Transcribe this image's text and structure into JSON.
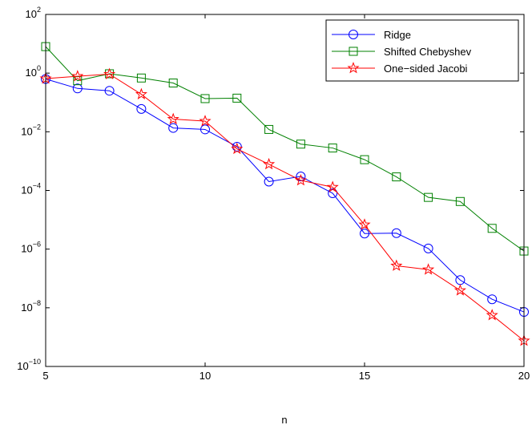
{
  "chart_data": {
    "type": "line",
    "xlabel": "n",
    "ylabel": "",
    "title": "",
    "x_scale": "linear",
    "y_scale": "log",
    "xlim": [
      5,
      20
    ],
    "ylim": [
      1e-10,
      100
    ],
    "x_ticks": [
      5,
      10,
      15,
      20
    ],
    "x_tick_labels": [
      "5",
      "10",
      "15",
      "20"
    ],
    "y_ticks": [
      {
        "value": 1e-10,
        "base": "10",
        "exp": "−10"
      },
      {
        "value": 1e-08,
        "base": "10",
        "exp": "−8"
      },
      {
        "value": 1e-06,
        "base": "10",
        "exp": "−6"
      },
      {
        "value": 0.0001,
        "base": "10",
        "exp": "−4"
      },
      {
        "value": 0.01,
        "base": "10",
        "exp": "−2"
      },
      {
        "value": 1,
        "base": "10",
        "exp": "0"
      },
      {
        "value": 100,
        "base": "10",
        "exp": "2"
      }
    ],
    "grid": false,
    "legend_position": "top-right",
    "x": [
      5,
      6,
      7,
      8,
      9,
      10,
      11,
      12,
      13,
      14,
      15,
      16,
      17,
      18,
      19,
      20
    ],
    "series": [
      {
        "name": "Ridge",
        "color": "#0000ff",
        "marker": "circle",
        "values": [
          0.63,
          0.3,
          0.25,
          0.06,
          0.0135,
          0.012,
          0.0031,
          0.0002,
          0.0003,
          8e-05,
          3.4e-06,
          3.5e-06,
          1.05e-06,
          8.8e-08,
          1.95e-08,
          7.2e-09
        ]
      },
      {
        "name": "Shifted Chebyshev",
        "color": "#008000",
        "marker": "square",
        "values": [
          8.0,
          0.55,
          0.95,
          0.68,
          0.46,
          0.135,
          0.14,
          0.012,
          0.0038,
          0.0028,
          0.00112,
          0.00029,
          5.8e-05,
          4.2e-05,
          5.1e-06,
          8.6e-07
        ]
      },
      {
        "name": "One−sided Jacobi",
        "color": "#ff0000",
        "marker": "star",
        "values": [
          0.65,
          0.78,
          0.92,
          0.19,
          0.027,
          0.023,
          0.0026,
          0.00078,
          0.00022,
          0.00013,
          6.8e-06,
          2.7e-07,
          2e-07,
          3.9e-08,
          5.6e-09,
          7.5e-10
        ]
      }
    ]
  }
}
